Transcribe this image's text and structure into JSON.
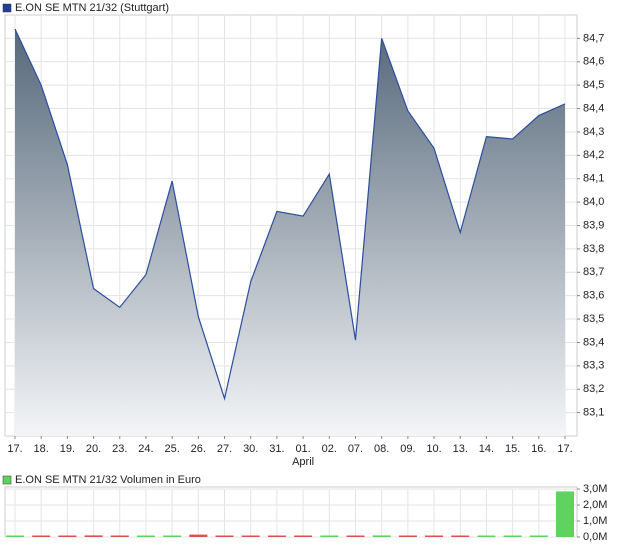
{
  "chart_data": [
    {
      "type": "area",
      "title": "E.ON SE MTN 21/32 (Stuttgart)",
      "legend_color": "#1f3f99",
      "categories": [
        "17.",
        "18.",
        "19.",
        "20.",
        "23.",
        "24.",
        "25.",
        "26.",
        "27.",
        "30.",
        "31.",
        "01.",
        "02.",
        "07.",
        "08.",
        "09.",
        "10.",
        "13.",
        "14.",
        "15.",
        "16.",
        "17."
      ],
      "sublabels": [
        null,
        null,
        null,
        null,
        null,
        null,
        null,
        null,
        null,
        null,
        null,
        "April",
        null,
        null,
        null,
        null,
        null,
        null,
        null,
        null,
        null,
        null
      ],
      "values": [
        84.74,
        84.5,
        84.16,
        83.63,
        83.55,
        83.69,
        84.09,
        83.51,
        83.16,
        83.66,
        83.96,
        83.94,
        84.12,
        83.41,
        84.7,
        84.39,
        84.23,
        83.87,
        84.28,
        84.27,
        84.37,
        84.42
      ],
      "color": "#2a4d9e",
      "fill_top": "#56687a",
      "fill_bottom": "#f4f5f7",
      "ylim": [
        83.0,
        84.8
      ],
      "yticks": [
        {
          "value": 83.1,
          "label": "83,1"
        },
        {
          "value": 83.2,
          "label": "83,2"
        },
        {
          "value": 83.3,
          "label": "83,3"
        },
        {
          "value": 83.4,
          "label": "83,4"
        },
        {
          "value": 83.5,
          "label": "83,5"
        },
        {
          "value": 83.6,
          "label": "83,6"
        },
        {
          "value": 83.7,
          "label": "83,7"
        },
        {
          "value": 83.8,
          "label": "83,8"
        },
        {
          "value": 83.9,
          "label": "83,9"
        },
        {
          "value": 84.0,
          "label": "84,0"
        },
        {
          "value": 84.1,
          "label": "84,1"
        },
        {
          "value": 84.2,
          "label": "84,2"
        },
        {
          "value": 84.3,
          "label": "84,3"
        },
        {
          "value": 84.4,
          "label": "84,4"
        },
        {
          "value": 84.5,
          "label": "84,5"
        },
        {
          "value": 84.6,
          "label": "84,6"
        },
        {
          "value": 84.7,
          "label": "84,7"
        }
      ],
      "grid": true
    },
    {
      "type": "bar",
      "title": "E.ON SE MTN 21/32 Volumen in Euro",
      "legend_color": "#5fd35f",
      "values": [
        40000,
        40000,
        40000,
        100000,
        40000,
        40000,
        40000,
        150000,
        0,
        0,
        0,
        0,
        40000,
        0,
        100000,
        40000,
        0,
        40000,
        0,
        0,
        0,
        2850000
      ],
      "colors": [
        "#5fd35f",
        "#e05050",
        "#e05050",
        "#e05050",
        "#e05050",
        "#5fd35f",
        "#5fd35f",
        "#e05050",
        "#e05050",
        "#e05050",
        "#e05050",
        "#e05050",
        "#5fd35f",
        "#e05050",
        "#5fd35f",
        "#e05050",
        "#e05050",
        "#e05050",
        "#5fd35f",
        "#5fd35f",
        "#5fd35f",
        "#5fd35f"
      ],
      "ylim": [
        0,
        3000000
      ],
      "yticks": [
        {
          "value": 0,
          "label": "0,0M"
        },
        {
          "value": 1000000,
          "label": "1,0M"
        },
        {
          "value": 2000000,
          "label": "2,0M"
        },
        {
          "value": 3000000,
          "label": "3,0M"
        }
      ],
      "grid": true
    }
  ]
}
